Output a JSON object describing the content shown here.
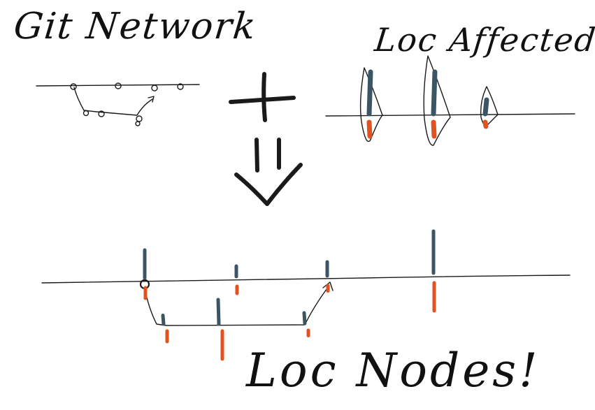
{
  "titles": {
    "git_network": "Git Network",
    "loc_affected": "Loc Affected",
    "loc_nodes": "Loc Nodes!"
  },
  "colors": {
    "ink": "#1a1a1a",
    "additions": "#3b5566",
    "deletions": "#e0521f"
  },
  "operators": [
    "plus-sign",
    "down-arrow"
  ],
  "loc_affected_peaks": [
    {
      "added": 3,
      "removed": 1
    },
    {
      "added": 3,
      "removed": 1
    },
    {
      "added": 1,
      "removed": 0.3
    }
  ],
  "loc_nodes": {
    "main_line": [
      {
        "added": 1.6,
        "removed": 0.6
      },
      {
        "added": 0.6,
        "removed": 0.4
      },
      {
        "added": 0.8,
        "removed": 0.3
      },
      {
        "added": 2.4,
        "removed": 1.6
      }
    ],
    "branch_line": [
      {
        "added": 0.5,
        "removed": 0.6
      },
      {
        "added": 1.4,
        "removed": 1.6
      },
      {
        "added": 0.6,
        "removed": 0.3
      }
    ]
  }
}
